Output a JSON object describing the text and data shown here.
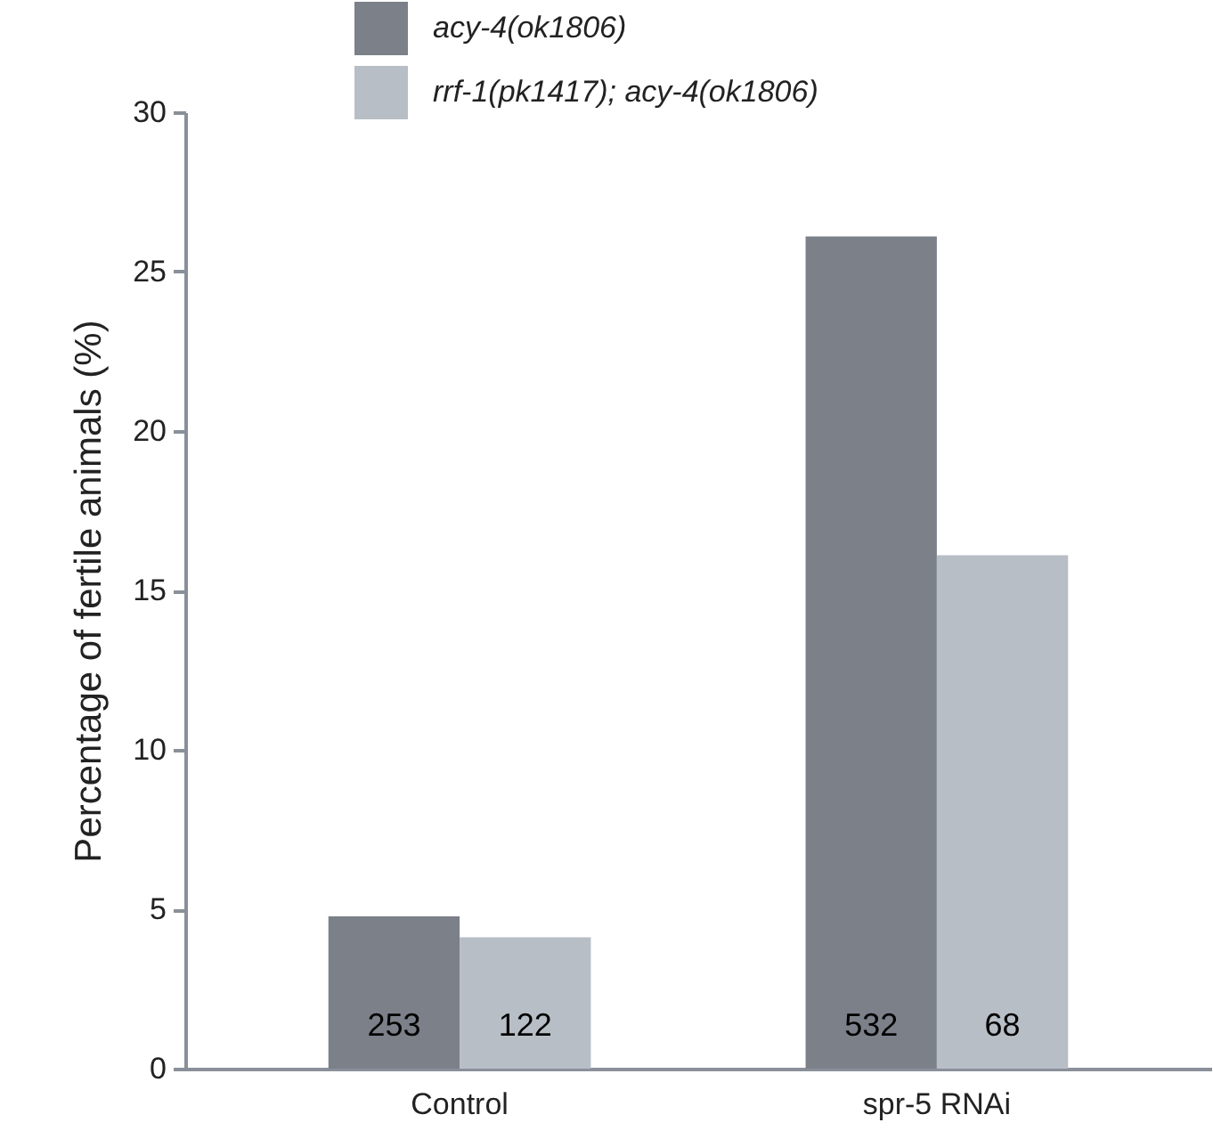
{
  "chart_data": {
    "type": "bar",
    "ylabel": "Percentage of fertile animals (%)",
    "categories": [
      "Control",
      "spr-5 RNAi"
    ],
    "series": [
      {
        "name": "acy-4(ok1806)",
        "color": "#7b8089",
        "values": [
          4.78,
          26.1
        ]
      },
      {
        "name": "rrf-1(pk1417); acy-4(ok1806)",
        "color": "#b8bec6",
        "values": [
          4.12,
          16.1
        ]
      }
    ],
    "annotations": [
      {
        "text": "253",
        "x": "Control",
        "y": 1.3
      },
      {
        "text": "122",
        "x": "Control",
        "y": 1.3
      },
      {
        "text": "532",
        "x": "spr-5 RNAi",
        "y": 1.3
      },
      {
        "text": "68",
        "x": "spr-5 RNAi",
        "y": 1.3
      }
    ],
    "ylim": [
      0,
      30
    ],
    "yticks": [
      0,
      5,
      10,
      15,
      20,
      25,
      30
    ],
    "grid": false,
    "legend": "top left"
  }
}
